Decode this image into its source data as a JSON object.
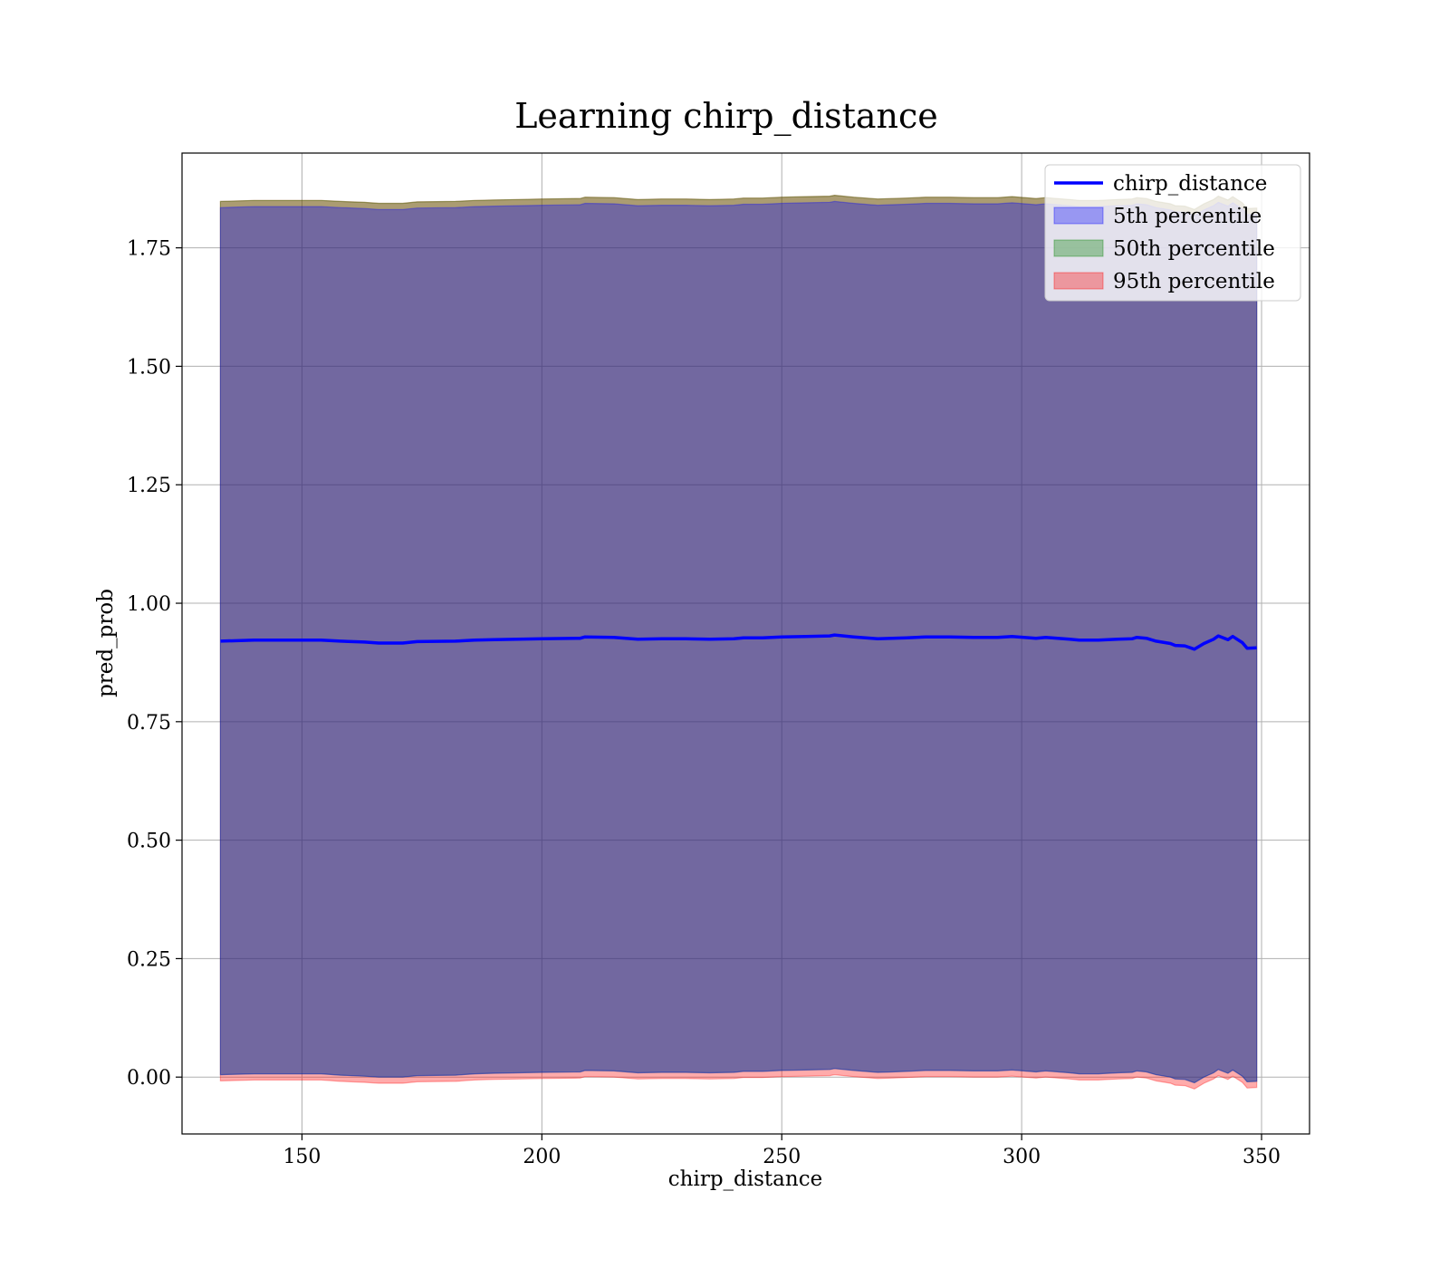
{
  "chart_data": {
    "type": "area",
    "title": "Learning chirp_distance",
    "xlabel": "chirp_distance",
    "ylabel": "pred_prob",
    "xlim": [
      125,
      360
    ],
    "ylim": [
      -0.12,
      1.95
    ],
    "xticks": [
      150,
      200,
      250,
      300,
      350
    ],
    "yticks": [
      0.0,
      0.25,
      0.5,
      0.75,
      1.0,
      1.25,
      1.5,
      1.75
    ],
    "ytick_labels": [
      "0.00",
      "0.25",
      "0.50",
      "0.75",
      "1.00",
      "1.25",
      "1.50",
      "1.75"
    ],
    "grid": true,
    "legend_position": "top-right",
    "legend": [
      {
        "label": "chirp_distance",
        "kind": "line",
        "color": "#0000ff"
      },
      {
        "label": "5th percentile",
        "kind": "patch",
        "color": "#0000ff"
      },
      {
        "label": "50th percentile",
        "kind": "patch",
        "color": "#008000"
      },
      {
        "label": "95th percentile",
        "kind": "patch",
        "color": "#ff0000"
      }
    ],
    "x": [
      133,
      140,
      148,
      154,
      158,
      163,
      166,
      171,
      174,
      182,
      186,
      190,
      195,
      200,
      208,
      209,
      215,
      220,
      225,
      230,
      235,
      240,
      242,
      246,
      250,
      255,
      260,
      261,
      265,
      270,
      273,
      276,
      280,
      285,
      290,
      295,
      298,
      303,
      305,
      310,
      312,
      314,
      316,
      320,
      323,
      324,
      326,
      328,
      331,
      332,
      334,
      336,
      338,
      340,
      341,
      343,
      344,
      346,
      347,
      349
    ],
    "series": [
      {
        "name": "chirp_distance",
        "color": "#0000ff",
        "values": [
          0.92,
          0.922,
          0.922,
          0.922,
          0.92,
          0.918,
          0.916,
          0.916,
          0.919,
          0.92,
          0.922,
          0.923,
          0.924,
          0.925,
          0.926,
          0.929,
          0.928,
          0.924,
          0.925,
          0.925,
          0.924,
          0.925,
          0.927,
          0.927,
          0.929,
          0.93,
          0.931,
          0.933,
          0.929,
          0.925,
          0.926,
          0.927,
          0.929,
          0.929,
          0.928,
          0.928,
          0.93,
          0.926,
          0.928,
          0.924,
          0.922,
          0.922,
          0.922,
          0.924,
          0.925,
          0.928,
          0.926,
          0.92,
          0.915,
          0.911,
          0.91,
          0.903,
          0.915,
          0.924,
          0.931,
          0.923,
          0.93,
          0.917,
          0.905,
          0.906
        ]
      },
      {
        "name": "5th percentile",
        "color": "#0000ff",
        "lower": [
          0.005,
          0.007,
          0.007,
          0.007,
          0.004,
          0.002,
          0.0,
          0.0,
          0.003,
          0.004,
          0.007,
          0.008,
          0.009,
          0.01,
          0.011,
          0.014,
          0.013,
          0.009,
          0.01,
          0.01,
          0.009,
          0.01,
          0.012,
          0.012,
          0.014,
          0.015,
          0.016,
          0.018,
          0.014,
          0.01,
          0.011,
          0.012,
          0.014,
          0.014,
          0.013,
          0.013,
          0.015,
          0.011,
          0.013,
          0.009,
          0.007,
          0.007,
          0.007,
          0.009,
          0.01,
          0.013,
          0.011,
          0.005,
          0.0,
          -0.004,
          -0.005,
          -0.012,
          0.0,
          0.009,
          0.016,
          0.008,
          0.015,
          0.002,
          -0.01,
          -0.009
        ],
        "upper": [
          1.835,
          1.837,
          1.837,
          1.837,
          1.835,
          1.833,
          1.831,
          1.831,
          1.834,
          1.835,
          1.837,
          1.838,
          1.839,
          1.84,
          1.841,
          1.844,
          1.843,
          1.839,
          1.84,
          1.84,
          1.839,
          1.84,
          1.842,
          1.842,
          1.844,
          1.845,
          1.846,
          1.848,
          1.844,
          1.84,
          1.841,
          1.842,
          1.844,
          1.844,
          1.843,
          1.843,
          1.845,
          1.841,
          1.843,
          1.839,
          1.837,
          1.837,
          1.837,
          1.839,
          1.84,
          1.843,
          1.841,
          1.835,
          1.83,
          1.826,
          1.825,
          1.818,
          1.83,
          1.839,
          1.846,
          1.838,
          1.845,
          1.832,
          1.82,
          1.821
        ]
      },
      {
        "name": "50th percentile",
        "color": "#008000",
        "lower": [
          0.005,
          0.007,
          0.007,
          0.007,
          0.004,
          0.002,
          0.0,
          0.0,
          0.003,
          0.004,
          0.007,
          0.008,
          0.009,
          0.01,
          0.011,
          0.014,
          0.013,
          0.009,
          0.01,
          0.01,
          0.009,
          0.01,
          0.012,
          0.012,
          0.014,
          0.015,
          0.016,
          0.018,
          0.014,
          0.01,
          0.011,
          0.012,
          0.014,
          0.014,
          0.013,
          0.013,
          0.015,
          0.011,
          0.013,
          0.009,
          0.007,
          0.007,
          0.007,
          0.009,
          0.01,
          0.013,
          0.011,
          0.005,
          0.0,
          -0.004,
          -0.005,
          -0.012,
          0.0,
          0.009,
          0.016,
          0.008,
          0.015,
          0.002,
          -0.01,
          -0.009
        ],
        "upper": [
          1.848,
          1.85,
          1.85,
          1.85,
          1.848,
          1.846,
          1.844,
          1.844,
          1.847,
          1.848,
          1.85,
          1.851,
          1.852,
          1.853,
          1.854,
          1.857,
          1.856,
          1.852,
          1.853,
          1.853,
          1.852,
          1.853,
          1.855,
          1.855,
          1.857,
          1.858,
          1.859,
          1.861,
          1.857,
          1.853,
          1.854,
          1.855,
          1.857,
          1.857,
          1.856,
          1.856,
          1.858,
          1.854,
          1.856,
          1.852,
          1.85,
          1.85,
          1.85,
          1.852,
          1.853,
          1.856,
          1.854,
          1.848,
          1.843,
          1.839,
          1.838,
          1.831,
          1.843,
          1.852,
          1.859,
          1.851,
          1.858,
          1.845,
          1.833,
          1.834
        ]
      },
      {
        "name": "95th percentile",
        "color": "#ff0000",
        "lower": [
          -0.008,
          -0.006,
          -0.006,
          -0.006,
          -0.009,
          -0.011,
          -0.013,
          -0.013,
          -0.01,
          -0.009,
          -0.006,
          -0.005,
          -0.004,
          -0.003,
          -0.002,
          0.001,
          0.0,
          -0.004,
          -0.003,
          -0.003,
          -0.004,
          -0.003,
          -0.001,
          -0.001,
          0.001,
          0.002,
          0.003,
          0.005,
          0.001,
          -0.003,
          -0.002,
          -0.001,
          0.001,
          0.001,
          0.0,
          0.0,
          0.002,
          -0.002,
          0.0,
          -0.004,
          -0.006,
          -0.006,
          -0.006,
          -0.004,
          -0.003,
          0.0,
          -0.002,
          -0.008,
          -0.013,
          -0.017,
          -0.018,
          -0.025,
          -0.013,
          -0.004,
          0.003,
          -0.005,
          0.002,
          -0.011,
          -0.023,
          -0.022
        ],
        "upper": [
          1.848,
          1.85,
          1.85,
          1.85,
          1.848,
          1.846,
          1.844,
          1.844,
          1.847,
          1.848,
          1.85,
          1.851,
          1.852,
          1.853,
          1.854,
          1.857,
          1.856,
          1.852,
          1.853,
          1.853,
          1.852,
          1.853,
          1.855,
          1.855,
          1.857,
          1.858,
          1.859,
          1.861,
          1.857,
          1.853,
          1.854,
          1.855,
          1.857,
          1.857,
          1.856,
          1.856,
          1.858,
          1.854,
          1.856,
          1.852,
          1.85,
          1.85,
          1.85,
          1.852,
          1.853,
          1.856,
          1.854,
          1.848,
          1.843,
          1.839,
          1.838,
          1.831,
          1.843,
          1.852,
          1.859,
          1.851,
          1.858,
          1.845,
          1.833,
          1.834
        ]
      }
    ]
  }
}
